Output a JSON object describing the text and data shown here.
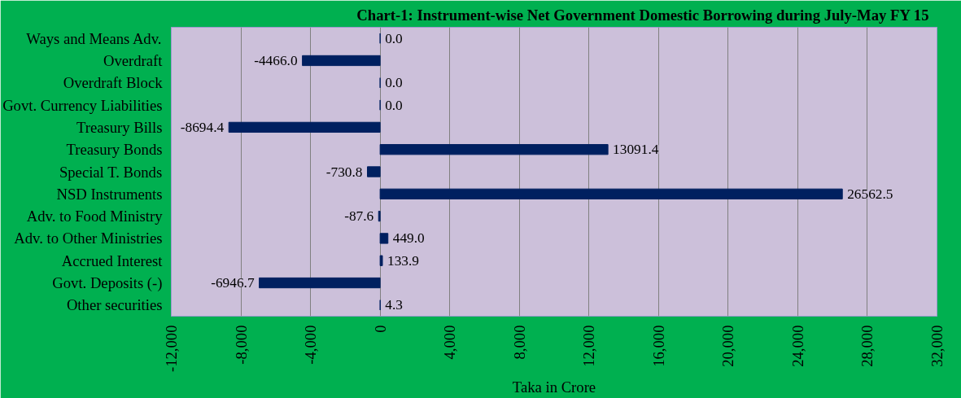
{
  "chart_data": {
    "type": "bar",
    "orientation": "horizontal",
    "title": "Chart-1: Instrument-wise  Net Government Domestic Borrowing during  July-May FY 15",
    "xlabel": "Taka in Crore",
    "categories": [
      "Ways and Means Adv.",
      "Overdraft",
      "Overdraft Block",
      "Govt. Currency Liabilities",
      "Treasury Bills",
      "Treasury Bonds",
      "Special T. Bonds",
      "NSD Instruments",
      "Adv. to Food Ministry",
      "Adv. to Other Ministries",
      "Accrued Interest",
      "Govt. Deposits (-)",
      "Other securities"
    ],
    "values": [
      0.0,
      -4466.0,
      0.0,
      0.0,
      -8694.4,
      13091.4,
      -730.8,
      26562.5,
      -87.6,
      449.0,
      133.9,
      -6946.7,
      4.3
    ],
    "value_labels": [
      "0.0",
      "-4466.0",
      "0.0",
      "0.0",
      "-8694.4",
      "13091.4",
      "-730.8",
      "26562.5",
      "-87.6",
      "449.0",
      "133.9",
      "-6946.7",
      "4.3"
    ],
    "color": "#002060",
    "xlim": [
      -12000,
      32000
    ],
    "xticks": [
      {
        "value": -12000,
        "label": "-12,000"
      },
      {
        "value": -8000,
        "label": "-8,000"
      },
      {
        "value": -4000,
        "label": "-4,000"
      },
      0,
      {
        "value": 4000,
        "label": "4,000"
      },
      {
        "value": 8000,
        "label": "8,000"
      },
      {
        "value": 12000,
        "label": "12,000"
      },
      {
        "value": 16000,
        "label": "16,000"
      },
      {
        "value": 20000,
        "label": "20,000"
      },
      {
        "value": 24000,
        "label": "24,000"
      },
      {
        "value": 28000,
        "label": "28,000"
      },
      {
        "value": 32000,
        "label": "32,000"
      }
    ],
    "grid": "x"
  }
}
